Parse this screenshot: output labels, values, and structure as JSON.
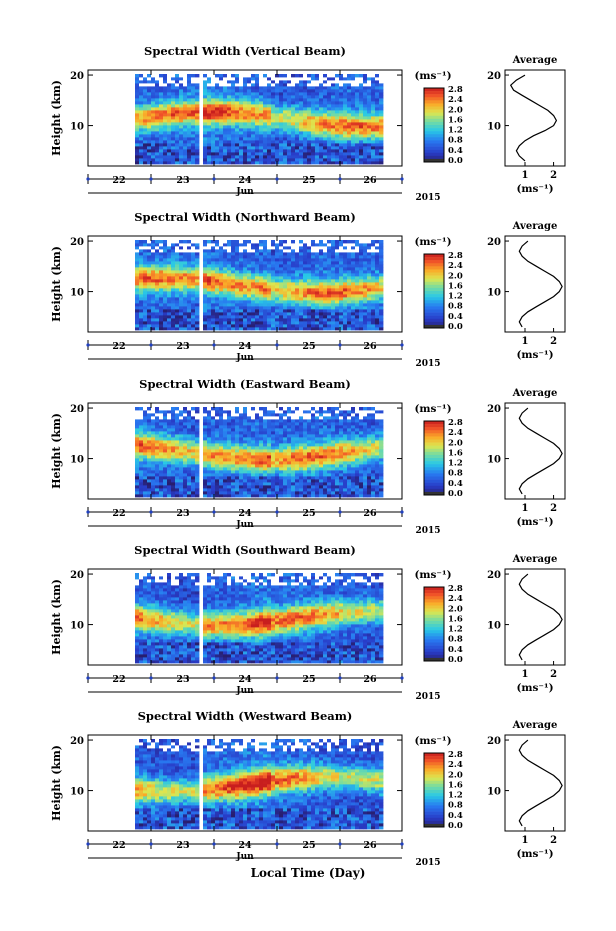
{
  "figure": {
    "bottom_xlabel": "Local Time (Day)",
    "month_label": "Jun",
    "year_label": "2015",
    "colorbar_unit": "(ms⁻¹)",
    "avg_title": "Average",
    "avg_xlabel": "(ms⁻¹)"
  },
  "chart_data": [
    {
      "type": "heatmap",
      "title": "Spectral Width (Vertical Beam)",
      "ylabel": "Height (km)",
      "xlabel": "Jun",
      "x_ticklabels": [
        "22",
        "23",
        "24",
        "25",
        "26"
      ],
      "y_ticklabels": [
        "10",
        "20"
      ],
      "colorbar_ticks": [
        "0.0",
        "0.4",
        "0.8",
        "1.2",
        "1.6",
        "2.0",
        "2.4",
        "2.8"
      ],
      "average": {
        "title": "Average",
        "xticks": [
          "1",
          "2"
        ],
        "yticks": [
          "10",
          "20"
        ],
        "xlabel": "(ms⁻¹)",
        "profile": [
          [
            1.0,
            3
          ],
          [
            0.8,
            4
          ],
          [
            0.7,
            5
          ],
          [
            0.8,
            6
          ],
          [
            1.0,
            7
          ],
          [
            1.3,
            8
          ],
          [
            1.7,
            9
          ],
          [
            2.0,
            10
          ],
          [
            2.1,
            11
          ],
          [
            2.0,
            12
          ],
          [
            1.8,
            13
          ],
          [
            1.5,
            14
          ],
          [
            1.2,
            15
          ],
          [
            0.9,
            16
          ],
          [
            0.6,
            17
          ],
          [
            0.5,
            18
          ],
          [
            0.7,
            19
          ],
          [
            1.0,
            20
          ]
        ]
      }
    },
    {
      "type": "heatmap",
      "title": "Spectral Width (Northward Beam)",
      "ylabel": "Height (km)",
      "xlabel": "Jun",
      "x_ticklabels": [
        "22",
        "23",
        "24",
        "25",
        "26"
      ],
      "y_ticklabels": [
        "10",
        "20"
      ],
      "colorbar_ticks": [
        "0.0",
        "0.4",
        "0.8",
        "1.2",
        "1.6",
        "2.0",
        "2.4",
        "2.8"
      ],
      "average": {
        "title": "Average",
        "xticks": [
          "1",
          "2"
        ],
        "yticks": [
          "10",
          "20"
        ],
        "xlabel": "(ms⁻¹)",
        "profile": [
          [
            0.9,
            3
          ],
          [
            0.8,
            4
          ],
          [
            0.9,
            5
          ],
          [
            1.1,
            6
          ],
          [
            1.4,
            7
          ],
          [
            1.7,
            8
          ],
          [
            2.0,
            9
          ],
          [
            2.2,
            10
          ],
          [
            2.3,
            11
          ],
          [
            2.2,
            12
          ],
          [
            2.0,
            13
          ],
          [
            1.7,
            14
          ],
          [
            1.4,
            15
          ],
          [
            1.1,
            16
          ],
          [
            0.9,
            17
          ],
          [
            0.8,
            18
          ],
          [
            0.9,
            19
          ],
          [
            1.1,
            20
          ]
        ]
      }
    },
    {
      "type": "heatmap",
      "title": "Spectral Width (Eastward Beam)",
      "ylabel": "Height (km)",
      "xlabel": "Jun",
      "x_ticklabels": [
        "22",
        "23",
        "24",
        "25",
        "26"
      ],
      "y_ticklabels": [
        "10",
        "20"
      ],
      "colorbar_ticks": [
        "0.0",
        "0.4",
        "0.8",
        "1.2",
        "1.6",
        "2.0",
        "2.4",
        "2.8"
      ],
      "average": {
        "title": "Average",
        "xticks": [
          "1",
          "2"
        ],
        "yticks": [
          "10",
          "20"
        ],
        "xlabel": "(ms⁻¹)",
        "profile": [
          [
            0.9,
            3
          ],
          [
            0.8,
            4
          ],
          [
            0.9,
            5
          ],
          [
            1.1,
            6
          ],
          [
            1.4,
            7
          ],
          [
            1.7,
            8
          ],
          [
            2.0,
            9
          ],
          [
            2.2,
            10
          ],
          [
            2.3,
            11
          ],
          [
            2.2,
            12
          ],
          [
            2.0,
            13
          ],
          [
            1.7,
            14
          ],
          [
            1.4,
            15
          ],
          [
            1.1,
            16
          ],
          [
            0.9,
            17
          ],
          [
            0.8,
            18
          ],
          [
            0.9,
            19
          ],
          [
            1.1,
            20
          ]
        ]
      }
    },
    {
      "type": "heatmap",
      "title": "Spectral Width (Southward Beam)",
      "ylabel": "Height (km)",
      "xlabel": "Jun",
      "x_ticklabels": [
        "22",
        "23",
        "24",
        "25",
        "26"
      ],
      "y_ticklabels": [
        "10",
        "20"
      ],
      "colorbar_ticks": [
        "0.0",
        "0.4",
        "0.8",
        "1.2",
        "1.6",
        "2.0",
        "2.4",
        "2.8"
      ],
      "average": {
        "title": "Average",
        "xticks": [
          "1",
          "2"
        ],
        "yticks": [
          "10",
          "20"
        ],
        "xlabel": "(ms⁻¹)",
        "profile": [
          [
            0.9,
            3
          ],
          [
            0.8,
            4
          ],
          [
            0.9,
            5
          ],
          [
            1.1,
            6
          ],
          [
            1.4,
            7
          ],
          [
            1.7,
            8
          ],
          [
            2.0,
            9
          ],
          [
            2.2,
            10
          ],
          [
            2.3,
            11
          ],
          [
            2.2,
            12
          ],
          [
            2.0,
            13
          ],
          [
            1.7,
            14
          ],
          [
            1.4,
            15
          ],
          [
            1.1,
            16
          ],
          [
            0.9,
            17
          ],
          [
            0.8,
            18
          ],
          [
            0.9,
            19
          ],
          [
            1.1,
            20
          ]
        ]
      }
    },
    {
      "type": "heatmap",
      "title": "Spectral Width (Westward Beam)",
      "ylabel": "Height (km)",
      "xlabel": "Jun",
      "x_ticklabels": [
        "22",
        "23",
        "24",
        "25",
        "26"
      ],
      "y_ticklabels": [
        "10",
        "20"
      ],
      "colorbar_ticks": [
        "0.0",
        "0.4",
        "0.8",
        "1.2",
        "1.6",
        "2.0",
        "2.4",
        "2.8"
      ],
      "average": {
        "title": "Average",
        "xticks": [
          "1",
          "2"
        ],
        "yticks": [
          "10",
          "20"
        ],
        "xlabel": "(ms⁻¹)",
        "profile": [
          [
            0.9,
            3
          ],
          [
            0.8,
            4
          ],
          [
            0.9,
            5
          ],
          [
            1.1,
            6
          ],
          [
            1.4,
            7
          ],
          [
            1.7,
            8
          ],
          [
            2.0,
            9
          ],
          [
            2.2,
            10
          ],
          [
            2.3,
            11
          ],
          [
            2.2,
            12
          ],
          [
            2.0,
            13
          ],
          [
            1.7,
            14
          ],
          [
            1.4,
            15
          ],
          [
            1.1,
            16
          ],
          [
            0.9,
            17
          ],
          [
            0.8,
            18
          ],
          [
            0.9,
            19
          ],
          [
            1.1,
            20
          ]
        ]
      }
    }
  ]
}
